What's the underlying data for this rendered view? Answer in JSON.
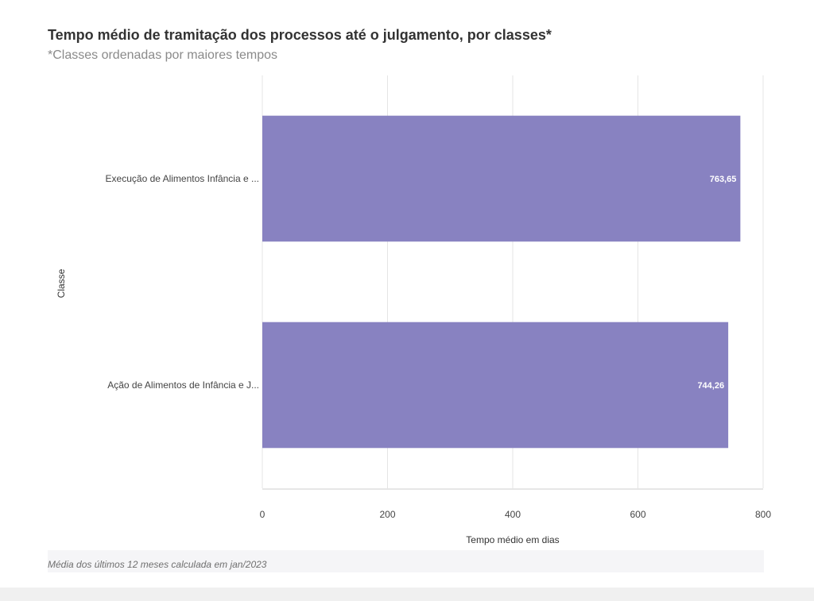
{
  "header": {
    "title": "Tempo médio de tramitação dos processos até o julgamento, por classes*",
    "subtitle": "*Classes ordenadas por maiores tempos"
  },
  "footer": {
    "note": "Média dos últimos 12 meses calculada em jan/2023"
  },
  "colors": {
    "bar": "#8882c1",
    "grid": "#e5e5e5",
    "axis_text": "#444444",
    "value_label": "#ffffff"
  },
  "chart_data": {
    "type": "bar",
    "orientation": "horizontal",
    "title": "Tempo médio de tramitação dos processos até o julgamento, por classes*",
    "subtitle": "*Classes ordenadas por maiores tempos",
    "xlabel": "Tempo médio em dias",
    "ylabel": "Classe",
    "categories": [
      "Execução de Alimentos Infância e ...",
      "Ação de Alimentos de Infância e J..."
    ],
    "values": [
      763.65,
      744.26
    ],
    "value_labels": [
      "763,65",
      "744,26"
    ],
    "xlim": [
      0,
      800
    ],
    "xticks": [
      0,
      200,
      400,
      600,
      800
    ],
    "grid": true,
    "legend": "none"
  }
}
